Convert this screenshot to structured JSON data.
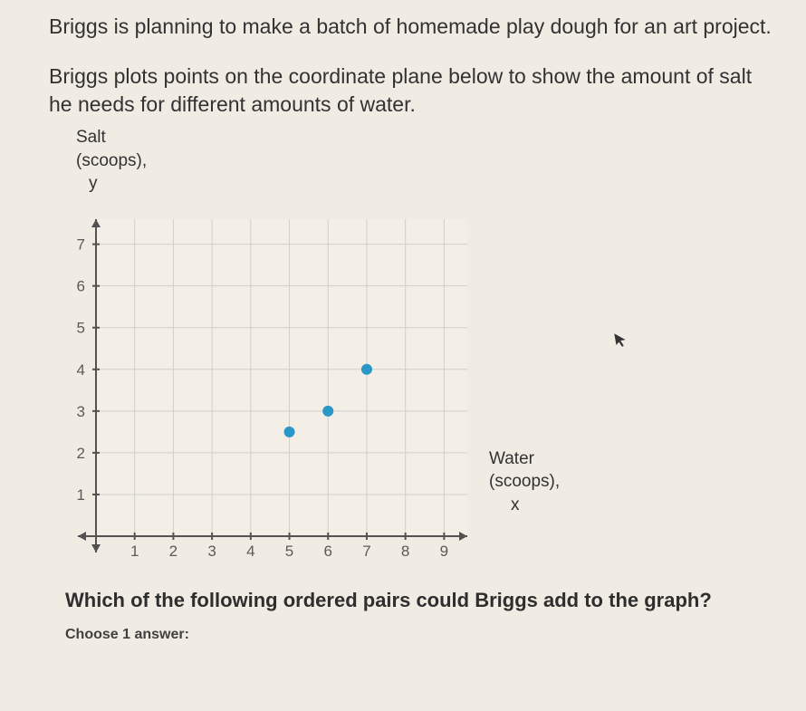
{
  "intro": "Briggs is planning to make a batch of homemade play dough for an art project.",
  "sub": "Briggs plots points on the coordinate plane below to show the amount of salt he needs for different amounts of water.",
  "ylabel": {
    "l1": "Salt",
    "l2": "(scoops),",
    "l3": "y"
  },
  "xlabel": {
    "l1": "Water",
    "l2": "(scoops),",
    "l3": "x"
  },
  "chart": {
    "type": "scatter",
    "background_color": "#f3efe7",
    "grid_color": "#cfcfcf",
    "axis_color": "#525252",
    "tick_label_color": "#5a5a5a",
    "tick_fontsize": 17,
    "xlim": [
      0,
      9.6
    ],
    "ylim": [
      0,
      7.6
    ],
    "xticks": [
      1,
      2,
      3,
      4,
      5,
      6,
      7,
      8,
      9
    ],
    "yticks": [
      1,
      2,
      3,
      4,
      5,
      6,
      7
    ],
    "point_color": "#2a97c6",
    "point_radius": 6,
    "points": [
      {
        "x": 5,
        "y": 2.5
      },
      {
        "x": 6,
        "y": 3.0
      },
      {
        "x": 7,
        "y": 4.0
      }
    ]
  },
  "question": "Which of the following ordered pairs could Briggs add to the graph?",
  "choose": "Choose 1 answer:"
}
